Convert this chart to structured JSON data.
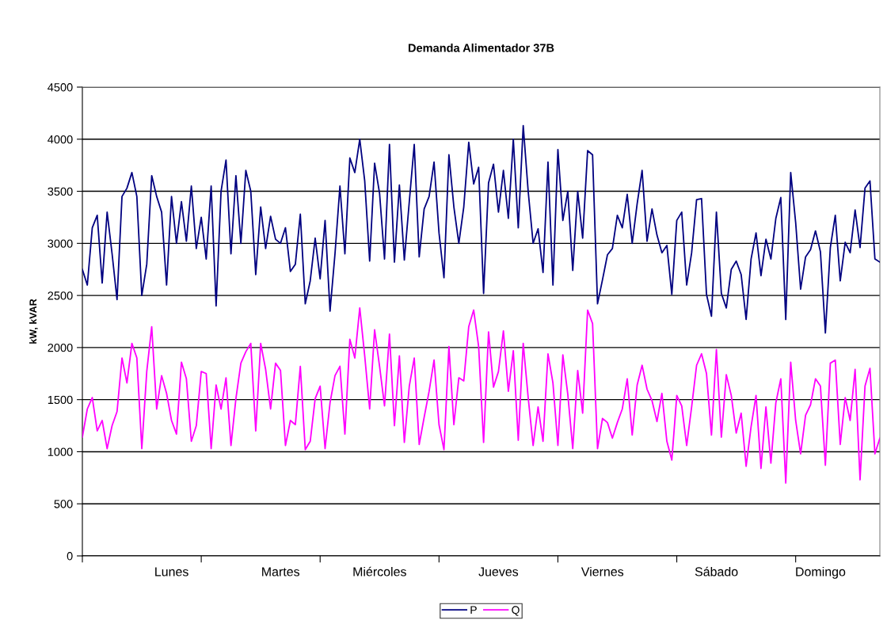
{
  "chart_data": {
    "type": "line",
    "title": "Demanda Alimentador 37B",
    "ylabel": "kW, kVAR",
    "ylim": [
      0,
      4500
    ],
    "yticks": [
      0,
      500,
      1000,
      1500,
      2000,
      2500,
      3000,
      3500,
      4000,
      4500
    ],
    "categories": [
      null,
      null,
      null,
      null,
      null,
      null,
      null,
      null,
      null,
      null,
      null,
      null,
      null,
      null,
      null,
      null,
      null,
      null,
      "Lunes",
      null,
      null,
      null,
      null,
      null,
      null,
      null,
      null,
      null,
      null,
      null,
      null,
      null,
      null,
      null,
      null,
      null,
      null,
      null,
      null,
      null,
      "Martes",
      null,
      null,
      null,
      null,
      null,
      null,
      null,
      null,
      null,
      null,
      null,
      null,
      null,
      null,
      null,
      null,
      null,
      null,
      null,
      "Miércoles",
      null,
      null,
      null,
      null,
      null,
      null,
      null,
      null,
      null,
      null,
      null,
      null,
      null,
      null,
      null,
      null,
      null,
      null,
      null,
      null,
      null,
      null,
      null,
      "Jueves",
      null,
      null,
      null,
      null,
      null,
      null,
      null,
      null,
      null,
      null,
      null,
      null,
      null,
      null,
      null,
      null,
      null,
      null,
      null,
      null,
      "Viernes",
      null,
      null,
      null,
      null,
      null,
      null,
      null,
      null,
      null,
      null,
      null,
      null,
      null,
      null,
      null,
      null,
      null,
      null,
      null,
      null,
      null,
      null,
      "Sábado",
      null,
      null,
      null,
      null,
      null,
      null,
      null,
      null,
      null,
      null,
      null,
      null,
      null,
      null,
      null,
      null,
      null,
      null,
      null,
      null,
      "Domingo",
      null,
      null,
      null,
      null,
      null,
      null,
      null,
      null,
      null,
      null,
      null,
      null
    ],
    "grid": "y",
    "legend": "bottom",
    "marker": "none",
    "line_style": "solid",
    "series": [
      {
        "name": "P",
        "color": "#000080",
        "values": [
          2750,
          2600,
          3150,
          3270,
          2620,
          3300,
          2900,
          2460,
          3450,
          3530,
          3680,
          3450,
          2500,
          2800,
          3650,
          3450,
          3300,
          2600,
          3450,
          3000,
          3400,
          3020,
          3550,
          2950,
          3250,
          2850,
          3550,
          2400,
          3500,
          3800,
          2900,
          3650,
          3000,
          3700,
          3500,
          2700,
          3350,
          2950,
          3260,
          3040,
          3000,
          3150,
          2730,
          2800,
          3280,
          2420,
          2640,
          3050,
          2660,
          3220,
          2350,
          2900,
          3550,
          2900,
          3820,
          3680,
          4000,
          3600,
          2830,
          3770,
          3480,
          2850,
          3950,
          2820,
          3560,
          2840,
          3400,
          3950,
          2870,
          3330,
          3450,
          3780,
          3100,
          2670,
          3850,
          3350,
          3000,
          3350,
          3970,
          3570,
          3730,
          2520,
          3580,
          3760,
          3300,
          3700,
          3240,
          4000,
          3150,
          4130,
          3500,
          3000,
          3140,
          2720,
          3780,
          2600,
          3900,
          3220,
          3500,
          2740,
          3500,
          3050,
          3890,
          3850,
          2420,
          2650,
          2890,
          2950,
          3270,
          3150,
          3470,
          3000,
          3380,
          3700,
          3020,
          3330,
          3080,
          2910,
          2980,
          2510,
          3220,
          3300,
          2600,
          2910,
          3420,
          3430,
          2510,
          2300,
          3300,
          2520,
          2380,
          2750,
          2830,
          2700,
          2270,
          2850,
          3100,
          2690,
          3040,
          2850,
          3240,
          3440,
          2270,
          3680,
          3200,
          2560,
          2870,
          2940,
          3120,
          2920,
          2140,
          2960,
          3270,
          2640,
          3010,
          2910,
          3320,
          2960,
          3530,
          3600,
          2850,
          2820
        ]
      },
      {
        "name": "Q",
        "color": "#ff00ff",
        "values": [
          1140,
          1410,
          1520,
          1200,
          1300,
          1030,
          1250,
          1385,
          1900,
          1660,
          2040,
          1900,
          1030,
          1770,
          2200,
          1410,
          1730,
          1560,
          1300,
          1170,
          1860,
          1700,
          1100,
          1250,
          1770,
          1750,
          1030,
          1640,
          1410,
          1710,
          1060,
          1510,
          1850,
          1960,
          2040,
          1200,
          2040,
          1790,
          1410,
          1850,
          1780,
          1060,
          1300,
          1260,
          1820,
          1020,
          1100,
          1510,
          1630,
          1030,
          1470,
          1730,
          1820,
          1170,
          2080,
          1900,
          2380,
          1920,
          1410,
          2170,
          1820,
          1440,
          2130,
          1250,
          1920,
          1090,
          1630,
          1900,
          1070,
          1330,
          1580,
          1880,
          1260,
          1020,
          2010,
          1260,
          1710,
          1680,
          2200,
          2360,
          2010,
          1090,
          2150,
          1620,
          1770,
          2160,
          1580,
          1970,
          1110,
          2040,
          1520,
          1060,
          1430,
          1100,
          1940,
          1660,
          1060,
          1930,
          1550,
          1030,
          1780,
          1370,
          2360,
          2230,
          1030,
          1320,
          1280,
          1130,
          1280,
          1410,
          1700,
          1160,
          1640,
          1830,
          1600,
          1490,
          1290,
          1560,
          1100,
          920,
          1540,
          1440,
          1060,
          1430,
          1830,
          1940,
          1750,
          1160,
          1980,
          1140,
          1740,
          1540,
          1180,
          1370,
          860,
          1240,
          1540,
          840,
          1430,
          890,
          1470,
          1700,
          700,
          1860,
          1300,
          980,
          1350,
          1450,
          1700,
          1630,
          870,
          1850,
          1880,
          1070,
          1520,
          1300,
          1790,
          730,
          1630,
          1800,
          980,
          1130
        ]
      }
    ]
  }
}
